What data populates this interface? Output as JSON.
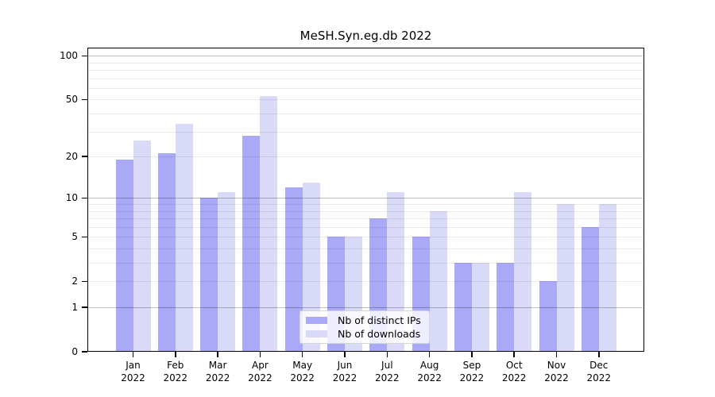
{
  "chart_data": {
    "type": "bar",
    "title": "MeSH.Syn.eg.db 2022",
    "categories": [
      "Jan 2022",
      "Feb 2022",
      "Mar 2022",
      "Apr 2022",
      "May 2022",
      "Jun 2022",
      "Jul 2022",
      "Aug 2022",
      "Sep 2022",
      "Oct 2022",
      "Nov 2022",
      "Dec 2022"
    ],
    "series": [
      {
        "name": "Nb of distinct IPs",
        "color": "#a9a9f7",
        "values": [
          19,
          21,
          10,
          28,
          12,
          5,
          7,
          5,
          3,
          3,
          2,
          6
        ]
      },
      {
        "name": "Nb of downloads",
        "color": "#d9d9f8",
        "values": [
          26,
          34,
          11,
          53,
          13,
          5,
          11,
          8,
          3,
          11,
          9,
          9
        ]
      }
    ],
    "yscale": "log1p",
    "ylim": [
      0,
      100
    ],
    "yticks": [
      0,
      1,
      2,
      5,
      10,
      20,
      50,
      100
    ],
    "major_gridlines": [
      1,
      10,
      100
    ],
    "minor_gridlines": [
      2,
      3,
      4,
      5,
      6,
      7,
      8,
      9,
      20,
      30,
      40,
      50,
      60,
      70,
      80,
      90
    ],
    "grid": true,
    "legend_position": "lower center"
  },
  "colors": {
    "distinct_ips": "#a9a9f7",
    "downloads": "#d9d9f8",
    "axis": "#000000"
  }
}
